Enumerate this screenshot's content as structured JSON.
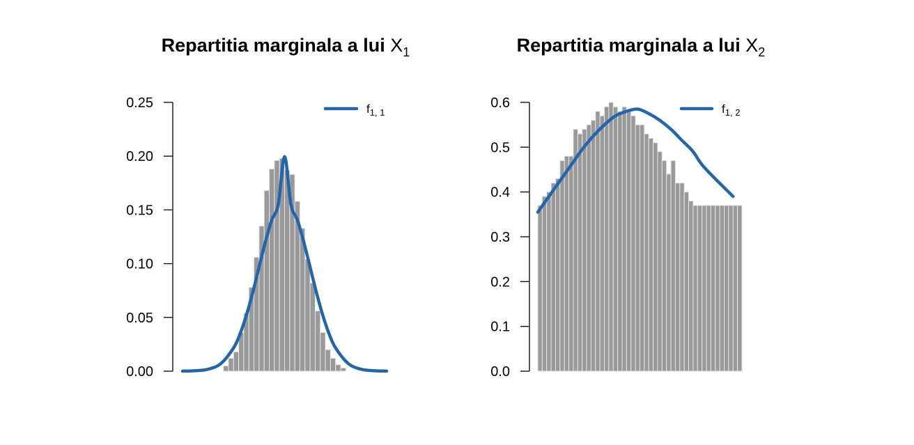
{
  "chart_data": [
    {
      "type": "histogram",
      "title": "Repartitia marginala a lui",
      "title_var": "X",
      "title_sub": "1",
      "ylim": [
        0,
        0.25
      ],
      "yticks": [
        "0.00",
        "0.05",
        "0.10",
        "0.15",
        "0.20",
        "0.25"
      ],
      "ytick_values": [
        0,
        0.05,
        0.1,
        0.15,
        0.2,
        0.25
      ],
      "xlim": [
        -4,
        4
      ],
      "x_axis_shown": false,
      "grid": false,
      "legend": {
        "position": "top-right",
        "entries": [
          {
            "label": "f",
            "sub": "1, 1"
          }
        ]
      },
      "colors": {
        "bars": "#999999",
        "bar_edge": "#e6e6e6",
        "curve": "#2166ac"
      },
      "histogram": {
        "bin_width": 0.2,
        "bins_x_start": [
          -2.4,
          -2.2,
          -2.0,
          -1.8,
          -1.6,
          -1.4,
          -1.2,
          -1.0,
          -0.8,
          -0.6,
          -0.4,
          -0.2,
          0.0,
          0.2,
          0.4,
          0.6,
          0.8,
          1.0,
          1.2,
          1.4,
          1.6,
          1.8,
          2.0,
          2.2
        ],
        "values": [
          0.005,
          0.012,
          0.018,
          0.036,
          0.054,
          0.078,
          0.106,
          0.135,
          0.168,
          0.188,
          0.196,
          0.198,
          0.187,
          0.183,
          0.158,
          0.133,
          0.104,
          0.082,
          0.056,
          0.036,
          0.02,
          0.012,
          0.006,
          0.003
        ]
      },
      "density_curve": {
        "label": "f_{1,1}",
        "x": [
          -4.0,
          -3.5,
          -3.0,
          -2.5,
          -2.0,
          -1.75,
          -1.5,
          -1.25,
          -1.0,
          -0.75,
          -0.5,
          -0.25,
          0.0,
          0.25,
          0.5,
          0.75,
          1.0,
          1.25,
          1.5,
          1.75,
          2.0,
          2.5,
          3.0,
          3.5,
          4.0
        ],
        "y": [
          0.0001,
          0.0004,
          0.0018,
          0.007,
          0.0216,
          0.0344,
          0.0518,
          0.073,
          0.0968,
          0.1204,
          0.1408,
          0.1548,
          0.1995,
          0.1548,
          0.1408,
          0.1204,
          0.0968,
          0.073,
          0.0518,
          0.0344,
          0.0216,
          0.007,
          0.0018,
          0.0004,
          0.0001
        ]
      }
    },
    {
      "type": "histogram",
      "title": "Repartitia marginala a lui",
      "title_var": "X",
      "title_sub": "2",
      "ylim": [
        0,
        0.6
      ],
      "yticks": [
        "0.0",
        "0.1",
        "0.2",
        "0.3",
        "0.4",
        "0.5",
        "0.6"
      ],
      "ytick_values": [
        0,
        0.1,
        0.2,
        0.3,
        0.4,
        0.5,
        0.6
      ],
      "xlim": [
        -0.5,
        4.1
      ],
      "x_axis_shown": false,
      "grid": false,
      "legend": {
        "position": "top-right",
        "entries": [
          {
            "label": "f",
            "sub": "1, 2"
          }
        ]
      },
      "colors": {
        "bars": "#999999",
        "bar_edge": "#e6e6e6",
        "curve": "#2166ac"
      },
      "histogram": {
        "bin_width": 0.1,
        "bins_x_start": [
          -0.5,
          -0.4,
          -0.3,
          -0.2,
          -0.1,
          0.0,
          0.1,
          0.2,
          0.3,
          0.4,
          0.5,
          0.6,
          0.7,
          0.8,
          0.9,
          1.0,
          1.1,
          1.2,
          1.3,
          1.4,
          1.5,
          1.6,
          1.7,
          1.8,
          1.9,
          2.0,
          2.1,
          2.2,
          2.3,
          2.4,
          2.5,
          2.6,
          2.7,
          2.8,
          2.9,
          3.0,
          3.1,
          3.2,
          3.3,
          3.4,
          3.5,
          3.6,
          3.7,
          3.8,
          3.9,
          4.0
        ],
        "values": [
          0.37,
          0.39,
          0.4,
          0.42,
          0.43,
          0.47,
          0.48,
          0.48,
          0.54,
          0.53,
          0.54,
          0.55,
          0.56,
          0.58,
          0.57,
          0.59,
          0.6,
          0.59,
          0.58,
          0.59,
          0.58,
          0.57,
          0.55,
          0.55,
          0.53,
          0.52,
          0.51,
          0.49,
          0.47,
          0.44,
          0.47,
          0.42,
          0.42,
          0.4,
          0.38,
          0.37,
          0.37,
          0.37,
          0.37,
          0.37,
          0.37,
          0.37,
          0.37,
          0.37,
          0.37,
          0.37
        ]
      },
      "density_curve": {
        "label": "f_{1,2}",
        "x": [
          -0.5,
          -0.25,
          0.0,
          0.25,
          0.5,
          0.75,
          1.0,
          1.25,
          1.5,
          1.75,
          2.0,
          2.25,
          2.5,
          2.75,
          3.0,
          3.25,
          3.9
        ],
        "y": [
          0.355,
          0.39,
          0.425,
          0.46,
          0.495,
          0.525,
          0.55,
          0.57,
          0.58,
          0.585,
          0.575,
          0.56,
          0.54,
          0.515,
          0.49,
          0.455,
          0.39
        ]
      }
    }
  ]
}
